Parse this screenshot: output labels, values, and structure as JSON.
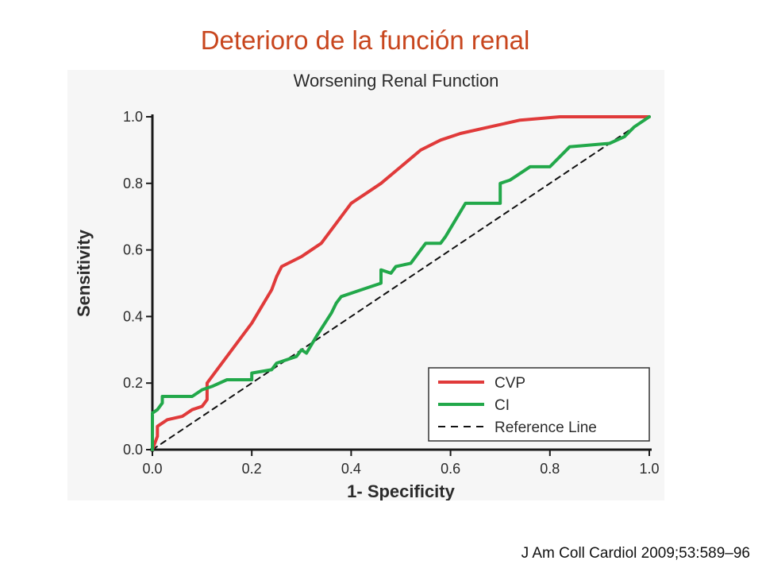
{
  "slide": {
    "title": "Deterioro de la función renal",
    "citation": "J Am Coll Cardiol 2009;53:589–96"
  },
  "chart_data": {
    "type": "line",
    "title": "Worsening Renal Function",
    "xlabel": "1- Specificity",
    "ylabel": "Sensitivity",
    "xlim": [
      0,
      1
    ],
    "ylim": [
      0,
      1
    ],
    "xticks": [
      "0.0",
      "0.2",
      "0.4",
      "0.6",
      "0.8",
      "1.0"
    ],
    "yticks": [
      "0.0",
      "0.2",
      "0.4",
      "0.6",
      "0.8",
      "1.0"
    ],
    "grid": false,
    "legend_position": "bottom-right",
    "series": [
      {
        "name": "CVP",
        "color": "#e03a3a",
        "style": "solid",
        "x": [
          0.0,
          0.01,
          0.01,
          0.03,
          0.06,
          0.08,
          0.1,
          0.11,
          0.11,
          0.13,
          0.15,
          0.17,
          0.2,
          0.22,
          0.24,
          0.25,
          0.26,
          0.3,
          0.34,
          0.37,
          0.4,
          0.43,
          0.46,
          0.5,
          0.54,
          0.58,
          0.62,
          0.68,
          0.74,
          0.82,
          0.9,
          1.0
        ],
        "y": [
          0.0,
          0.04,
          0.07,
          0.09,
          0.1,
          0.12,
          0.13,
          0.15,
          0.2,
          0.24,
          0.28,
          0.32,
          0.38,
          0.43,
          0.48,
          0.52,
          0.55,
          0.58,
          0.62,
          0.68,
          0.74,
          0.77,
          0.8,
          0.85,
          0.9,
          0.93,
          0.95,
          0.97,
          0.99,
          1.0,
          1.0,
          1.0
        ]
      },
      {
        "name": "CI",
        "color": "#22a84a",
        "style": "solid",
        "x": [
          0.0,
          0.0,
          0.01,
          0.02,
          0.02,
          0.03,
          0.08,
          0.1,
          0.12,
          0.15,
          0.2,
          0.2,
          0.24,
          0.25,
          0.29,
          0.3,
          0.31,
          0.33,
          0.36,
          0.37,
          0.38,
          0.42,
          0.46,
          0.46,
          0.48,
          0.49,
          0.52,
          0.55,
          0.58,
          0.59,
          0.63,
          0.7,
          0.7,
          0.72,
          0.73,
          0.76,
          0.8,
          0.84,
          0.92,
          0.95,
          0.97,
          1.0
        ],
        "y": [
          0.0,
          0.11,
          0.12,
          0.14,
          0.16,
          0.16,
          0.16,
          0.18,
          0.19,
          0.21,
          0.21,
          0.23,
          0.24,
          0.26,
          0.28,
          0.3,
          0.29,
          0.34,
          0.41,
          0.44,
          0.46,
          0.48,
          0.5,
          0.54,
          0.53,
          0.55,
          0.56,
          0.62,
          0.62,
          0.64,
          0.74,
          0.74,
          0.8,
          0.81,
          0.82,
          0.85,
          0.85,
          0.91,
          0.92,
          0.94,
          0.97,
          1.0
        ]
      },
      {
        "name": "Reference Line",
        "color": "#111111",
        "style": "dashed",
        "x": [
          0.0,
          1.0
        ],
        "y": [
          0.0,
          1.0
        ]
      }
    ]
  }
}
